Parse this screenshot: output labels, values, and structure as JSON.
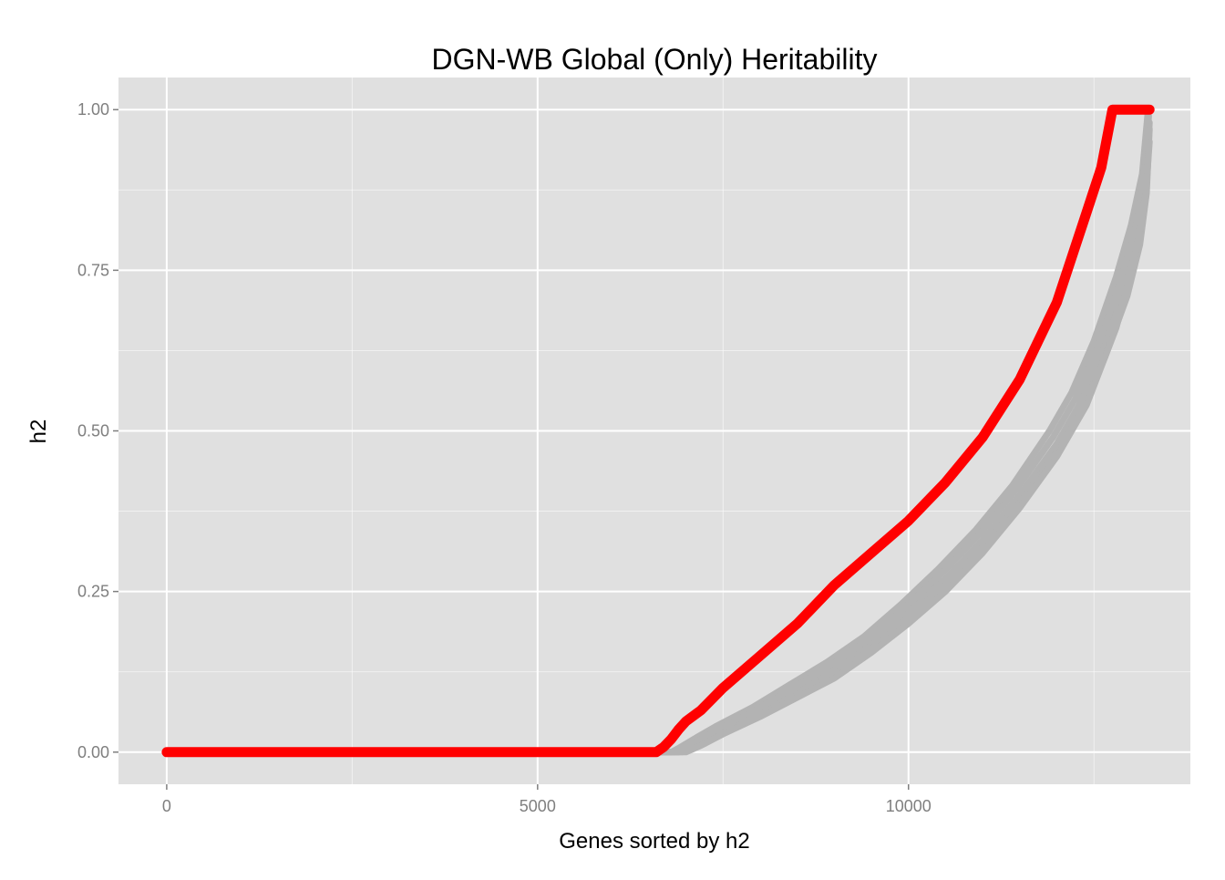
{
  "chart_data": {
    "type": "line",
    "title": "DGN-WB Global (Only) Heritability",
    "xlabel": "Genes sorted by h2",
    "ylabel": "h2",
    "xlim": [
      -650,
      13800
    ],
    "ylim": [
      -0.05,
      1.05
    ],
    "xticks": [
      0,
      5000,
      10000
    ],
    "xtick_labels": [
      "0",
      "5000",
      "10000"
    ],
    "xminor": [
      2500,
      7500,
      12500
    ],
    "yticks": [
      0,
      0.25,
      0.5,
      0.75,
      1.0
    ],
    "ytick_labels": [
      "0.00",
      "0.25",
      "0.50",
      "0.75",
      "1.00"
    ],
    "yminor": [
      0.125,
      0.375,
      0.625,
      0.875
    ],
    "grid": true,
    "legend": "none",
    "colors": {
      "panel": "#e0e0e0",
      "grid": "#ffffff",
      "observed": "#ff0000",
      "permuted": "#b3b3b3"
    },
    "series": [
      {
        "role": "observed",
        "x": [
          0,
          6600,
          6700,
          6800,
          6900,
          7000,
          7200,
          7500,
          8000,
          8500,
          9000,
          9500,
          10000,
          10500,
          11000,
          11500,
          12000,
          12200,
          12400,
          12600,
          12750,
          13000,
          13250
        ],
        "y": [
          0,
          0,
          0.008,
          0.02,
          0.035,
          0.048,
          0.065,
          0.1,
          0.15,
          0.2,
          0.26,
          0.31,
          0.36,
          0.42,
          0.49,
          0.58,
          0.7,
          0.77,
          0.84,
          0.91,
          1.0,
          1.0,
          1.0
        ]
      },
      {
        "role": "permuted",
        "x": [
          0,
          6900,
          7000,
          7200,
          7500,
          8000,
          8500,
          9000,
          9500,
          10000,
          10500,
          11000,
          11500,
          12000,
          12300,
          12600,
          12900,
          13100,
          13200,
          13250
        ],
        "y": [
          0,
          0,
          0.005,
          0.015,
          0.035,
          0.065,
          0.095,
          0.13,
          0.17,
          0.22,
          0.27,
          0.33,
          0.4,
          0.48,
          0.54,
          0.62,
          0.72,
          0.8,
          0.88,
          0.98
        ]
      },
      {
        "role": "permuted",
        "x": [
          0,
          6800,
          6900,
          7100,
          7400,
          7900,
          8400,
          8900,
          9400,
          9900,
          10400,
          10900,
          11400,
          11900,
          12200,
          12500,
          12800,
          13000,
          13150,
          13230
        ],
        "y": [
          0,
          0,
          0.006,
          0.02,
          0.04,
          0.07,
          0.105,
          0.14,
          0.18,
          0.23,
          0.285,
          0.345,
          0.415,
          0.5,
          0.56,
          0.64,
          0.74,
          0.82,
          0.9,
          1.0
        ]
      },
      {
        "role": "permuted",
        "x": [
          0,
          6850,
          6950,
          7150,
          7450,
          7950,
          8450,
          8950,
          9450,
          9950,
          10450,
          10950,
          11450,
          11950,
          12250,
          12550,
          12850,
          13050,
          13180,
          13240
        ],
        "y": [
          0,
          0,
          0.004,
          0.017,
          0.036,
          0.066,
          0.1,
          0.135,
          0.175,
          0.225,
          0.278,
          0.338,
          0.408,
          0.49,
          0.55,
          0.63,
          0.73,
          0.81,
          0.89,
          0.99
        ]
      },
      {
        "role": "permuted",
        "x": [
          0,
          6950,
          7050,
          7250,
          7550,
          8050,
          8550,
          9050,
          9550,
          10050,
          10550,
          11050,
          11550,
          12050,
          12350,
          12650,
          12950,
          13120,
          13210,
          13250
        ],
        "y": [
          0,
          0,
          0.004,
          0.013,
          0.032,
          0.062,
          0.092,
          0.125,
          0.165,
          0.215,
          0.265,
          0.325,
          0.395,
          0.475,
          0.535,
          0.615,
          0.71,
          0.79,
          0.87,
          0.97
        ]
      },
      {
        "role": "permuted",
        "x": [
          0,
          7000,
          7200,
          7500,
          8000,
          8500,
          9000,
          9500,
          10000,
          10500,
          11000,
          11500,
          12000,
          12400,
          12800,
          13050,
          13200,
          13250
        ],
        "y": [
          0,
          0,
          0.01,
          0.028,
          0.055,
          0.085,
          0.115,
          0.155,
          0.2,
          0.25,
          0.31,
          0.38,
          0.46,
          0.54,
          0.66,
          0.77,
          0.87,
          0.95
        ]
      }
    ]
  }
}
